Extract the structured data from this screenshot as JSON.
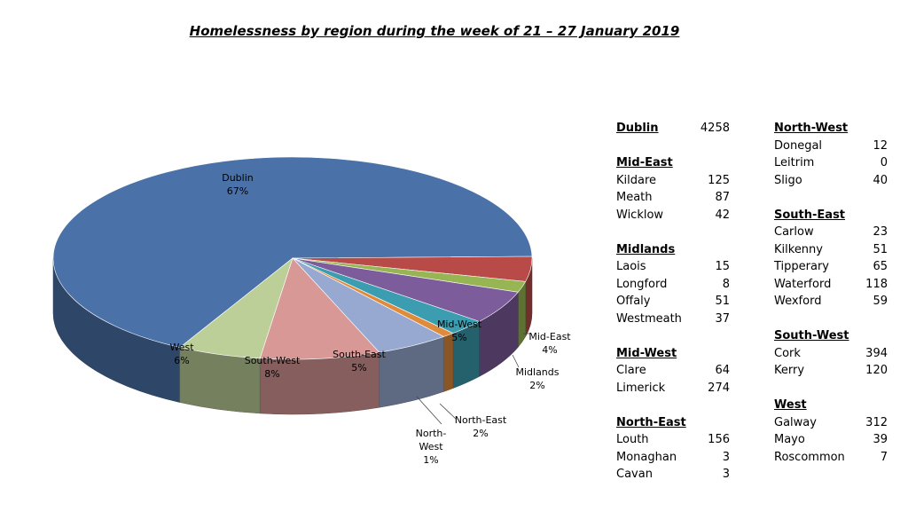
{
  "title": "Homelessness by region during the week of 21 – 27 January 2019",
  "chart_data": {
    "type": "pie",
    "title": "Homelessness by region during the week of 21 – 27 January 2019",
    "slices": [
      {
        "name": "Dublin",
        "value": 4258,
        "percent_label": "67%",
        "color": "#4a72a9"
      },
      {
        "name": "Mid-East",
        "value": 254,
        "percent_label": "4%",
        "color": "#b84a47"
      },
      {
        "name": "Midlands",
        "value": 111,
        "percent_label": "2%",
        "color": "#97b653"
      },
      {
        "name": "Mid-West",
        "value": 338,
        "percent_label": "5%",
        "color": "#7c5c9b"
      },
      {
        "name": "North-East",
        "value": 162,
        "percent_label": "2%",
        "color": "#3c9db0"
      },
      {
        "name": "North-West",
        "value": 52,
        "percent_label": "1%",
        "color": "#e08a3c"
      },
      {
        "name": "South-East",
        "value": 316,
        "percent_label": "5%",
        "color": "#97a9d1"
      },
      {
        "name": "South-West",
        "value": 514,
        "percent_label": "8%",
        "color": "#d79896"
      },
      {
        "name": "West",
        "value": 358,
        "percent_label": "6%",
        "color": "#bccf99"
      }
    ]
  },
  "table": {
    "left": [
      {
        "region": "Dublin",
        "total": "4258",
        "rows": []
      },
      {
        "region": "Mid-East",
        "rows": [
          {
            "name": "Kildare",
            "value": "125"
          },
          {
            "name": "Meath",
            "value": "87"
          },
          {
            "name": "Wicklow",
            "value": "42"
          }
        ]
      },
      {
        "region": "Midlands",
        "rows": [
          {
            "name": "Laois",
            "value": "15"
          },
          {
            "name": "Longford",
            "value": "8"
          },
          {
            "name": "Offaly",
            "value": "51"
          },
          {
            "name": "Westmeath",
            "value": "37"
          }
        ]
      },
      {
        "region": "Mid-West",
        "rows": [
          {
            "name": "Clare",
            "value": "64"
          },
          {
            "name": "Limerick",
            "value": "274"
          }
        ]
      },
      {
        "region": "North-East",
        "rows": [
          {
            "name": "Louth",
            "value": "156"
          },
          {
            "name": "Monaghan",
            "value": "3"
          },
          {
            "name": "Cavan",
            "value": "3"
          }
        ]
      }
    ],
    "right": [
      {
        "region": "North-West",
        "rows": [
          {
            "name": "Donegal",
            "value": "12"
          },
          {
            "name": "Leitrim",
            "value": "0"
          },
          {
            "name": "Sligo",
            "value": "40"
          }
        ]
      },
      {
        "region": "South-East",
        "rows": [
          {
            "name": "Carlow",
            "value": "23"
          },
          {
            "name": "Kilkenny",
            "value": "51"
          },
          {
            "name": "Tipperary",
            "value": "65"
          },
          {
            "name": "Waterford",
            "value": "118"
          },
          {
            "name": "Wexford",
            "value": "59"
          }
        ]
      },
      {
        "region": "South-West",
        "rows": [
          {
            "name": "Cork",
            "value": "394"
          },
          {
            "name": "Kerry",
            "value": "120"
          }
        ]
      },
      {
        "region": "West",
        "rows": [
          {
            "name": "Galway",
            "value": "312"
          },
          {
            "name": "Mayo",
            "value": "39"
          },
          {
            "name": "Roscommon",
            "value": "7"
          }
        ]
      }
    ]
  }
}
